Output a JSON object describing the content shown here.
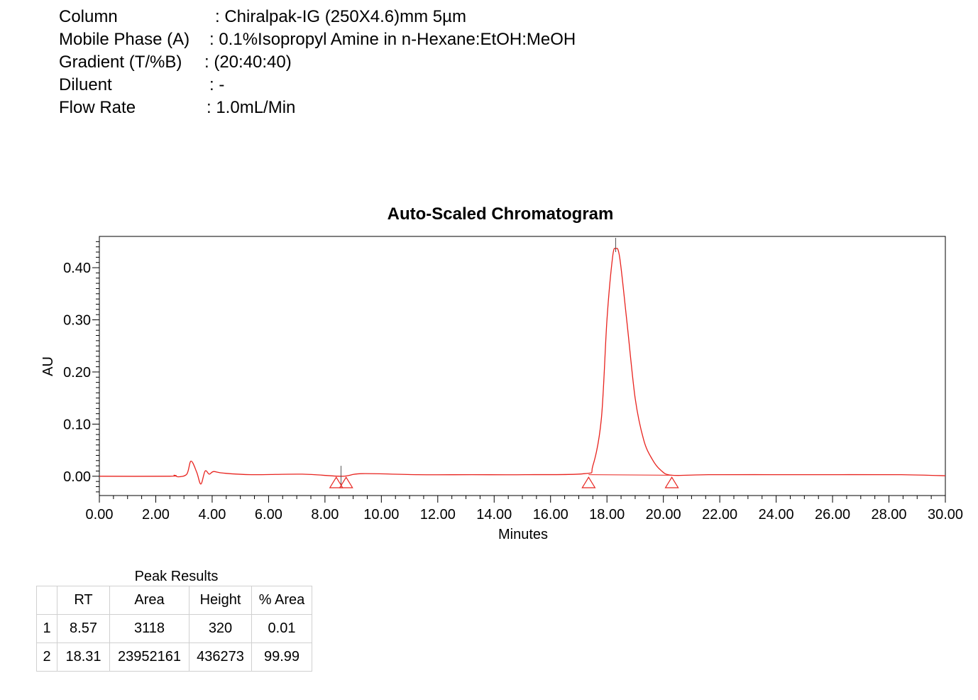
{
  "method": [
    {
      "label": "Column",
      "value": ": Chiralpak-IG (250X4.6)mm 5µm"
    },
    {
      "label": "Mobile Phase (A)",
      "value": ": 0.1%Isopropyl Amine in n-Hexane:EtOH:MeOH"
    },
    {
      "label": "Gradient (T/%B)",
      "value": ": (20:40:40)"
    },
    {
      "label": "Diluent",
      "value": ": -"
    },
    {
      "label": "Flow Rate",
      "value": ": 1.0mL/Min"
    }
  ],
  "chart_data": {
    "type": "line",
    "title": "Auto-Scaled Chromatogram",
    "xlabel": "Minutes",
    "ylabel": "AU",
    "xlim": [
      0,
      30
    ],
    "ylim": [
      -0.037,
      0.46
    ],
    "xticks": [
      "0.00",
      "2.00",
      "4.00",
      "6.00",
      "8.00",
      "10.00",
      "12.00",
      "14.00",
      "16.00",
      "18.00",
      "20.00",
      "22.00",
      "24.00",
      "26.00",
      "28.00",
      "30.00"
    ],
    "yticks": [
      "0.00",
      "0.10",
      "0.20",
      "0.30",
      "0.40"
    ],
    "grid": false,
    "line_color": "#e8231e",
    "series": [
      {
        "x": [
          0.0,
          2.5,
          2.65,
          2.8,
          3.1,
          3.25,
          3.45,
          3.6,
          3.75,
          3.9,
          4.05,
          4.4,
          5.4,
          7.2,
          8.6,
          9.3,
          11.3,
          13.2,
          15.1,
          17.2,
          17.5,
          17.8,
          18.0,
          18.2,
          18.31,
          18.45,
          18.7,
          19.0,
          19.3,
          19.6,
          19.9,
          20.3,
          21.6,
          23.8,
          26.2,
          28.4,
          30.0
        ],
        "y": [
          0.0,
          0.0,
          0.002,
          -0.001,
          0.004,
          0.029,
          0.008,
          -0.015,
          0.01,
          0.004,
          0.009,
          0.006,
          0.003,
          0.004,
          0.0,
          0.005,
          0.003,
          0.003,
          0.003,
          0.005,
          0.02,
          0.11,
          0.3,
          0.42,
          0.4363,
          0.42,
          0.3,
          0.15,
          0.07,
          0.033,
          0.012,
          0.002,
          0.003,
          0.003,
          0.003,
          0.003,
          0.001
        ]
      }
    ],
    "peak_markers": [
      8.57,
      18.31
    ],
    "integration_marks": [
      8.4,
      8.75,
      17.35,
      20.3
    ]
  },
  "peak_results": {
    "title": "Peak Results",
    "headers": [
      "",
      "RT",
      "Area",
      "Height",
      "% Area"
    ],
    "rows": [
      [
        "1",
        "8.57",
        "3118",
        "320",
        "0.01"
      ],
      [
        "2",
        "18.31",
        "23952161",
        "436273",
        "99.99"
      ]
    ]
  }
}
